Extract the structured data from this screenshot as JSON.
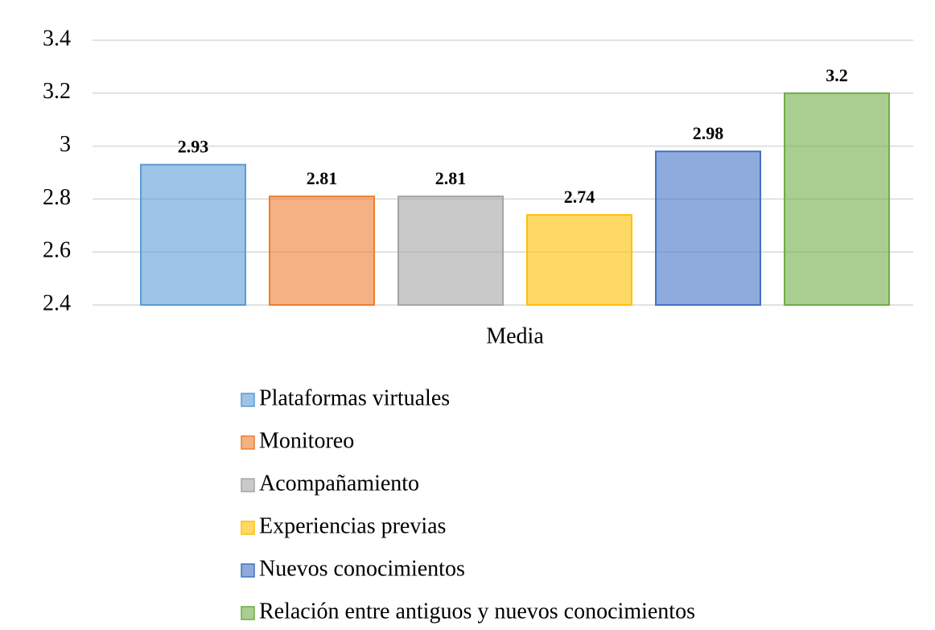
{
  "chart_data": {
    "type": "bar",
    "x_label": "Media",
    "categories": [
      "Media"
    ],
    "series": [
      {
        "name": "Plataformas virtuales",
        "color": "#5b9bd5",
        "values": [
          2.93
        ]
      },
      {
        "name": "Monitoreo",
        "color": "#ed7d31",
        "values": [
          2.81
        ]
      },
      {
        "name": "Acompañamiento",
        "color": "#a5a5a5",
        "values": [
          2.81
        ]
      },
      {
        "name": "Experiencias previas",
        "color": "#ffc000",
        "values": [
          2.74
        ]
      },
      {
        "name": "Nuevos conocimientos",
        "color": "#4472c4",
        "values": [
          2.98
        ]
      },
      {
        "name": "Relación entre antiguos y nuevos conocimientos",
        "color": "#70ad47",
        "values": [
          3.2
        ]
      }
    ],
    "ylim": [
      2.4,
      3.4
    ],
    "yticks": [
      2.4,
      2.6,
      2.8,
      3,
      3.2,
      3.4
    ],
    "grid": true,
    "legend": "bottom"
  }
}
